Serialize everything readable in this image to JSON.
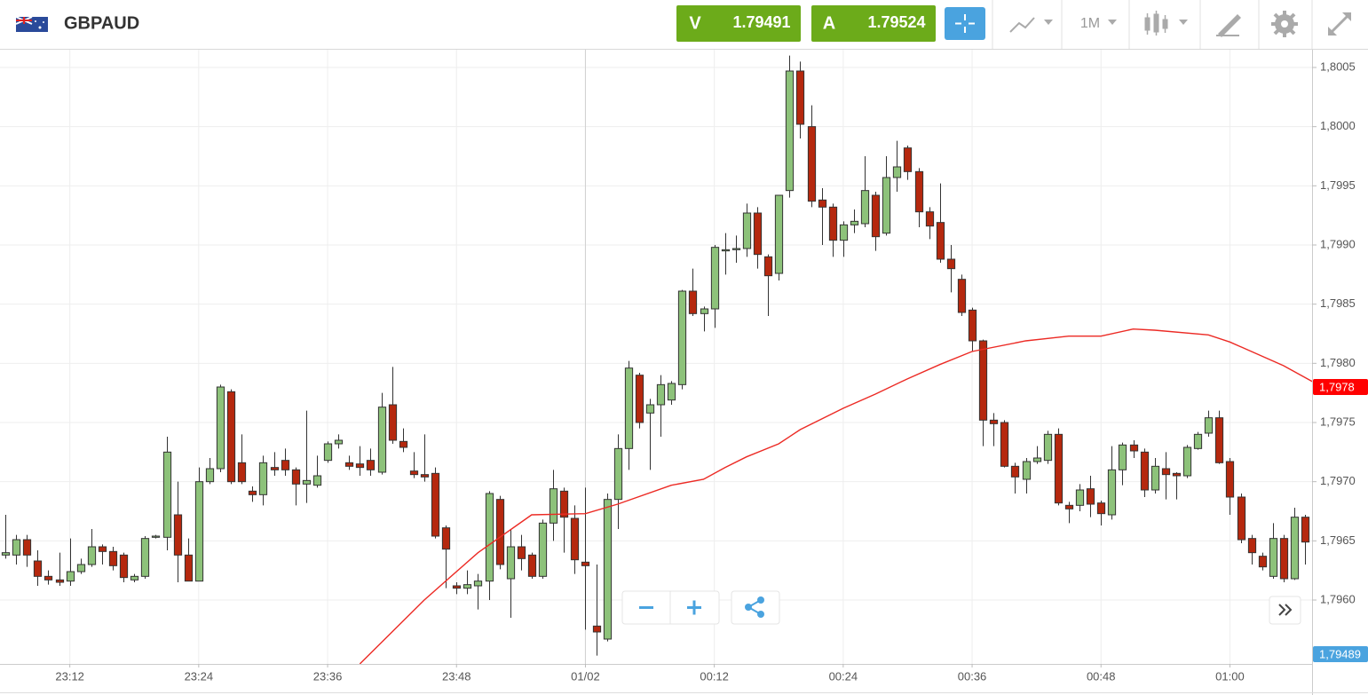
{
  "header": {
    "symbol": "GBPAUD",
    "sell_label": "V",
    "sell_price": "1.79491",
    "buy_label": "A",
    "buy_price": "1.79524",
    "timeframe": "1M"
  },
  "chart_data": {
    "type": "candlestick",
    "x": [
      "23:06",
      "23:07",
      "23:08",
      "23:09",
      "23:10",
      "23:11",
      "23:12",
      "23:13",
      "23:14",
      "23:15",
      "23:16",
      "23:17",
      "23:18",
      "23:19",
      "23:20",
      "23:21",
      "23:22",
      "23:23",
      "23:24",
      "23:25",
      "23:26",
      "23:27",
      "23:28",
      "23:29",
      "23:30",
      "23:31",
      "23:32",
      "23:33",
      "23:34",
      "23:35",
      "23:36",
      "23:37",
      "23:38",
      "23:39",
      "23:40",
      "23:41",
      "23:42",
      "23:43",
      "23:44",
      "23:45",
      "23:46",
      "23:47",
      "23:48",
      "23:49",
      "23:50",
      "23:51",
      "23:52",
      "23:53",
      "23:54",
      "23:55",
      "23:56",
      "23:57",
      "23:58",
      "23:59",
      "00:00",
      "00:01",
      "00:02",
      "00:03",
      "00:04",
      "00:05",
      "00:06",
      "00:07",
      "00:08",
      "00:09",
      "00:10",
      "00:11",
      "00:12",
      "00:13",
      "00:14",
      "00:15",
      "00:16",
      "00:17",
      "00:18",
      "00:19",
      "00:20",
      "00:21",
      "00:22",
      "00:23",
      "00:24",
      "00:25",
      "00:26",
      "00:27",
      "00:28",
      "00:29",
      "00:30",
      "00:31",
      "00:32",
      "00:33",
      "00:34",
      "00:35",
      "00:36",
      "00:37",
      "00:38",
      "00:39",
      "00:40",
      "00:41",
      "00:42",
      "00:43",
      "00:44",
      "00:45",
      "00:46",
      "00:47",
      "00:48",
      "00:49",
      "00:50",
      "00:51",
      "00:52",
      "00:53",
      "00:54",
      "00:55",
      "00:56",
      "00:57",
      "00:58",
      "00:59",
      "01:00",
      "01:01",
      "01:02",
      "01:03",
      "01:04",
      "01:05",
      "01:06",
      "01:07"
    ],
    "open": [
      1.79638,
      1.79638,
      1.79651,
      1.79633,
      1.7962,
      1.79617,
      1.79616,
      1.79624,
      1.7963,
      1.79645,
      1.79641,
      1.79638,
      1.79617,
      1.7962,
      1.79653,
      1.79653,
      1.79672,
      1.79638,
      1.79616,
      1.797,
      1.79711,
      1.79776,
      1.79716,
      1.79692,
      1.79689,
      1.79712,
      1.79718,
      1.7971,
      1.79698,
      1.79697,
      1.79718,
      1.79732,
      1.79716,
      1.79715,
      1.79718,
      1.79708,
      1.79765,
      1.79734,
      1.79709,
      1.79706,
      1.79707,
      1.79661,
      1.79612,
      1.7961,
      1.79612,
      1.79616,
      1.79685,
      1.79618,
      1.79645,
      1.79638,
      1.7962,
      1.79665,
      1.79692,
      1.79669,
      1.79632,
      1.79578,
      1.79567,
      1.79685,
      1.79728,
      1.7979,
      1.79758,
      1.79765,
      1.79769,
      1.79782,
      1.79861,
      1.79842,
      1.79846,
      1.79895,
      1.79896,
      1.79897,
      1.79927,
      1.7989,
      1.79876,
      1.79946,
      1.80047,
      1.8,
      1.79938,
      1.79932,
      1.79904,
      1.79917,
      1.79918,
      1.79942,
      1.7991,
      1.79957,
      1.79982,
      1.79962,
      1.79928,
      1.79919,
      1.79888,
      1.79871,
      1.79845,
      1.79819,
      1.79752,
      1.7975,
      1.79713,
      1.79702,
      1.79717,
      1.79718,
      1.7974,
      1.7968,
      1.7968,
      1.79694,
      1.79682,
      1.79672,
      1.7971,
      1.79731,
      1.79725,
      1.79693,
      1.79711,
      1.79707,
      1.79705,
      1.79728,
      1.79741,
      1.79754,
      1.79717,
      1.79687,
      1.79652,
      1.79637,
      1.7962,
      1.79652,
      1.79618,
      1.7967
    ],
    "high": [
      1.79672,
      1.79655,
      1.79655,
      1.79642,
      1.79625,
      1.7964,
      1.79652,
      1.79635,
      1.7966,
      1.79647,
      1.79645,
      1.7964,
      1.79622,
      1.79654,
      1.79655,
      1.79738,
      1.797,
      1.79652,
      1.79712,
      1.7972,
      1.79782,
      1.79778,
      1.7974,
      1.79696,
      1.79722,
      1.79725,
      1.79728,
      1.79712,
      1.7976,
      1.79722,
      1.79734,
      1.7974,
      1.79722,
      1.7973,
      1.79728,
      1.79775,
      1.79797,
      1.79745,
      1.79725,
      1.7974,
      1.79712,
      1.79663,
      1.79615,
      1.79625,
      1.79622,
      1.79692,
      1.79688,
      1.7966,
      1.79655,
      1.7964,
      1.79668,
      1.7971,
      1.79695,
      1.7968,
      1.79695,
      1.7963,
      1.7969,
      1.7974,
      1.79802,
      1.79792,
      1.7977,
      1.7979,
      1.79785,
      1.79862,
      1.7988,
      1.79848,
      1.799,
      1.7991,
      1.79908,
      1.79935,
      1.79932,
      1.79892,
      1.79942,
      1.8006,
      1.80055,
      1.80018,
      1.79948,
      1.79935,
      1.7992,
      1.7993,
      1.79975,
      1.79945,
      1.79975,
      1.79988,
      1.79984,
      1.79965,
      1.79932,
      1.79952,
      1.799,
      1.79875,
      1.79847,
      1.7982,
      1.79758,
      1.79752,
      1.79716,
      1.7972,
      1.7973,
      1.79743,
      1.79745,
      1.79683,
      1.79698,
      1.79705,
      1.79684,
      1.7973,
      1.79733,
      1.79735,
      1.79728,
      1.7972,
      1.79725,
      1.79708,
      1.79731,
      1.79742,
      1.7976,
      1.7976,
      1.7972,
      1.7969,
      1.79655,
      1.7964,
      1.79665,
      1.79655,
      1.79678,
      1.79672
    ],
    "low": [
      1.79635,
      1.7963,
      1.79628,
      1.79612,
      1.79613,
      1.79612,
      1.79612,
      1.79622,
      1.79628,
      1.7963,
      1.79625,
      1.79615,
      1.79615,
      1.79618,
      1.79652,
      1.79642,
      1.79615,
      1.79616,
      1.79616,
      1.79698,
      1.79708,
      1.79698,
      1.79698,
      1.79683,
      1.7968,
      1.79705,
      1.79705,
      1.7968,
      1.79682,
      1.79695,
      1.79716,
      1.79728,
      1.7971,
      1.79705,
      1.79705,
      1.79706,
      1.79732,
      1.79725,
      1.79703,
      1.797,
      1.79652,
      1.7961,
      1.79605,
      1.79605,
      1.79592,
      1.796,
      1.79626,
      1.79585,
      1.79625,
      1.79618,
      1.79618,
      1.7965,
      1.7964,
      1.79622,
      1.79575,
      1.79553,
      1.79565,
      1.7966,
      1.7971,
      1.79745,
      1.7971,
      1.79738,
      1.79765,
      1.79778,
      1.7984,
      1.79827,
      1.7983,
      1.79875,
      1.79885,
      1.7989,
      1.7988,
      1.7984,
      1.7987,
      1.7994,
      1.7999,
      1.79932,
      1.799,
      1.7989,
      1.7989,
      1.7991,
      1.79915,
      1.79895,
      1.79908,
      1.79945,
      1.79955,
      1.79915,
      1.79905,
      1.79885,
      1.7986,
      1.7984,
      1.7981,
      1.7973,
      1.7973,
      1.79712,
      1.7969,
      1.7969,
      1.79715,
      1.79715,
      1.7968,
      1.79665,
      1.79675,
      1.7967,
      1.79663,
      1.79668,
      1.79697,
      1.7972,
      1.79687,
      1.7969,
      1.79685,
      1.79685,
      1.79703,
      1.79727,
      1.79738,
      1.79715,
      1.79672,
      1.79648,
      1.7963,
      1.79625,
      1.79618,
      1.79615,
      1.79617,
      1.7963
    ],
    "close": [
      1.7964,
      1.79651,
      1.79638,
      1.7962,
      1.79617,
      1.79615,
      1.79624,
      1.7963,
      1.79645,
      1.79641,
      1.79629,
      1.79619,
      1.7962,
      1.79652,
      1.79654,
      1.79725,
      1.79638,
      1.79616,
      1.797,
      1.79711,
      1.7978,
      1.797,
      1.797,
      1.79689,
      1.79716,
      1.7971,
      1.7971,
      1.79698,
      1.79701,
      1.79705,
      1.79732,
      1.79735,
      1.79713,
      1.79712,
      1.7971,
      1.79763,
      1.79735,
      1.79729,
      1.79706,
      1.79704,
      1.79654,
      1.79643,
      1.7961,
      1.79613,
      1.79616,
      1.7969,
      1.7963,
      1.79645,
      1.79635,
      1.7962,
      1.79665,
      1.79694,
      1.7967,
      1.79634,
      1.79629,
      1.79573,
      1.79685,
      1.79728,
      1.79796,
      1.7975,
      1.79765,
      1.79782,
      1.79783,
      1.79861,
      1.79842,
      1.79846,
      1.79898,
      1.79896,
      1.79897,
      1.79927,
      1.79892,
      1.79874,
      1.79942,
      1.80047,
      1.80002,
      1.79937,
      1.79932,
      1.79904,
      1.79917,
      1.7992,
      1.79946,
      1.79907,
      1.79957,
      1.79966,
      1.79962,
      1.79928,
      1.79916,
      1.79888,
      1.7988,
      1.79843,
      1.79819,
      1.79752,
      1.79749,
      1.79713,
      1.79704,
      1.79717,
      1.7972,
      1.7974,
      1.79682,
      1.79677,
      1.79693,
      1.79681,
      1.79673,
      1.7971,
      1.79731,
      1.79726,
      1.79693,
      1.79713,
      1.79706,
      1.79705,
      1.79729,
      1.7974,
      1.79754,
      1.79716,
      1.79687,
      1.79651,
      1.7964,
      1.79628,
      1.79652,
      1.79618,
      1.7967,
      1.79649
    ],
    "up_color": "#8dc27a",
    "down_color": "#b5280e",
    "overlay": {
      "type": "line",
      "color": "#ec2a24",
      "x": [
        "23:39",
        "23:45",
        "23:50",
        "23:55",
        "00:00",
        "00:03",
        "00:08",
        "00:11",
        "00:13",
        "00:15",
        "00:18",
        "00:20",
        "00:24",
        "00:27",
        "00:30",
        "00:33",
        "00:36",
        "00:41",
        "00:45",
        "00:48",
        "00:51",
        "00:53",
        "00:58",
        "01:00",
        "01:05",
        "01:08"
      ],
      "values": [
        1.79546,
        1.796,
        1.7964,
        1.79672,
        1.79673,
        1.79681,
        1.79697,
        1.79702,
        1.79712,
        1.79721,
        1.79732,
        1.79744,
        1.79762,
        1.79774,
        1.79787,
        1.79799,
        1.7981,
        1.79819,
        1.79823,
        1.79823,
        1.79829,
        1.79828,
        1.79824,
        1.79818,
        1.79798,
        1.79783
      ]
    },
    "xlim": [
      "23:05:30",
      "01:07:39"
    ],
    "xticks": [
      "23:12",
      "23:24",
      "23:36",
      "23:48",
      {
        "value": "00:00",
        "label": "01/02"
      },
      "00:12",
      "00:24",
      "00:36",
      "00:48",
      "01:00"
    ],
    "ylim": [
      1.79546,
      1.80065
    ],
    "yticks": [
      {
        "value": 1.796,
        "label": "1,7960"
      },
      {
        "value": 1.7965,
        "label": "1,7965"
      },
      {
        "value": 1.797,
        "label": "1,7970"
      },
      {
        "value": 1.7975,
        "label": "1,7975"
      },
      {
        "value": 1.798,
        "label": "1,7980"
      },
      {
        "value": 1.7985,
        "label": "1,7985"
      },
      {
        "value": 1.799,
        "label": "1,7990"
      },
      {
        "value": 1.7995,
        "label": "1,7995"
      },
      {
        "value": 1.8,
        "label": "1,8000"
      },
      {
        "value": 1.8005,
        "label": "1,8005"
      }
    ],
    "grid": true,
    "annotations": [
      {
        "value": 1.7978,
        "label": "1,7978",
        "color": "#ff0000"
      },
      {
        "value": 1.79489,
        "label": "1,79489",
        "color": "#4aa3df"
      }
    ]
  }
}
